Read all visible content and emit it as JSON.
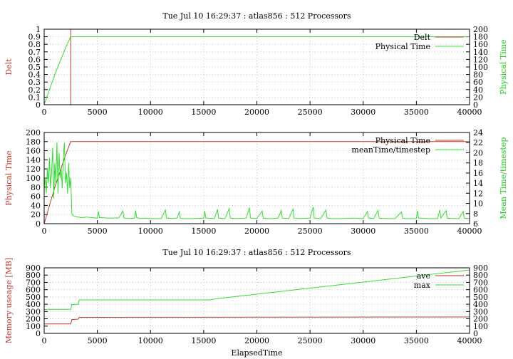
{
  "chart_data": [
    {
      "type": "line",
      "title": "Tue Jul 10 16:29:37 : atlas856 : 512 Processors",
      "xlabel": "",
      "ylabel_left": "Delt",
      "ylabel_right": "Physical Time",
      "xlim": [
        0,
        40000
      ],
      "ylim_left": [
        0,
        1
      ],
      "ylim_right": [
        0,
        200
      ],
      "yticks_left": [
        0,
        0.1,
        0.2,
        0.3,
        0.4,
        0.5,
        0.6,
        0.7,
        0.8,
        0.9,
        1
      ],
      "yticks_right": [
        0,
        20,
        40,
        60,
        80,
        100,
        120,
        140,
        160,
        180,
        200
      ],
      "xticks": [
        0,
        5000,
        10000,
        15000,
        20000,
        25000,
        30000,
        35000,
        40000
      ],
      "grid": true,
      "legend_position": "top-right",
      "series": [
        {
          "name": "Delt",
          "axis": "left",
          "color": "#c0392b",
          "x": [
            0,
            2500,
            2500,
            2500,
            40000
          ],
          "y": [
            0,
            0,
            1,
            0,
            0
          ]
        },
        {
          "name": "Physical Time",
          "axis": "right",
          "color": "#33dd33",
          "x": [
            0,
            500,
            1000,
            1500,
            2000,
            2500,
            40000
          ],
          "y": [
            0,
            40,
            80,
            115,
            150,
            180,
            180
          ]
        }
      ]
    },
    {
      "type": "line",
      "title": "",
      "xlabel": "",
      "ylabel_left": "Physical Time",
      "ylabel_right": "Mean Time/timestep",
      "xlim": [
        0,
        40000
      ],
      "ylim_left": [
        0,
        200
      ],
      "ylim_right": [
        6,
        24
      ],
      "yticks_left": [
        0,
        20,
        40,
        60,
        80,
        100,
        120,
        140,
        160,
        180,
        200
      ],
      "yticks_right": [
        6,
        8,
        10,
        12,
        14,
        16,
        18,
        20,
        22,
        24
      ],
      "xticks": [
        0,
        5000,
        10000,
        15000,
        20000,
        25000,
        30000,
        35000,
        40000
      ],
      "grid": true,
      "legend_position": "top-right",
      "series": [
        {
          "name": "Physical Time",
          "axis": "left",
          "color": "#c0392b",
          "x": [
            0,
            500,
            1000,
            1500,
            2000,
            2500,
            40000
          ],
          "y": [
            0,
            40,
            80,
            115,
            150,
            180,
            180
          ]
        },
        {
          "name": "meanTime/timestep",
          "axis": "right",
          "color": "#33dd33",
          "x": [
            0,
            100,
            200,
            300,
            400,
            500,
            600,
            700,
            800,
            900,
            1000,
            1100,
            1200,
            1300,
            1400,
            1500,
            1600,
            1700,
            1800,
            1900,
            2000,
            2100,
            2200,
            2300,
            2400,
            2500,
            2600,
            2700,
            3000,
            3500,
            4000,
            4500,
            5000,
            5100,
            5200,
            6000,
            7000,
            7400,
            7500,
            8000,
            8500,
            8600,
            8700,
            9000,
            9500,
            10000,
            11000,
            11400,
            11500,
            12000,
            12500,
            12700,
            12800,
            13000,
            14000,
            15000,
            15100,
            15200,
            16000,
            16300,
            16400,
            17000,
            17400,
            17500,
            18000,
            19000,
            19300,
            19400,
            20000,
            20500,
            20600,
            21000,
            21500,
            22000,
            22300,
            22400,
            23000,
            23400,
            23500,
            24000,
            25000,
            25300,
            25400,
            26000,
            26500,
            26600,
            27000,
            28000,
            29000,
            30000,
            30400,
            30500,
            31000,
            31400,
            31500,
            32000,
            33000,
            33600,
            33700,
            34000,
            35000,
            35100,
            35200,
            36000,
            37000,
            37200,
            37300,
            37800,
            37900,
            38500,
            39000,
            39400,
            39500,
            40000
          ],
          "y": [
            13,
            15,
            12,
            17,
            14,
            19,
            13,
            16,
            21,
            11,
            18,
            14,
            22,
            12,
            20,
            15,
            17,
            13,
            19,
            22,
            14,
            16,
            12,
            18,
            13,
            15,
            8,
            7.6,
            7.4,
            7.2,
            7.3,
            7.2,
            7.1,
            8.4,
            7.2,
            7.1,
            7.1,
            8.5,
            7.1,
            7.0,
            7.1,
            8.6,
            7.2,
            7.0,
            7.1,
            7.0,
            7.0,
            8.7,
            7.1,
            7.0,
            7.1,
            8.3,
            7.1,
            7.0,
            7.0,
            7.1,
            8.5,
            7.1,
            7.0,
            8.8,
            7.1,
            7.0,
            9.0,
            7.1,
            7.0,
            7.1,
            9.2,
            7.1,
            7.0,
            8.5,
            7.1,
            7.0,
            7.0,
            7.1,
            8.6,
            7.1,
            7.0,
            8.9,
            7.1,
            7.0,
            7.1,
            9.3,
            7.1,
            7.0,
            8.7,
            7.1,
            7.0,
            7.0,
            7.1,
            7.0,
            8.4,
            7.1,
            7.0,
            8.6,
            7.1,
            7.0,
            7.0,
            8.3,
            7.1,
            7.0,
            7.0,
            8.5,
            7.1,
            7.0,
            7.0,
            8.7,
            7.1,
            8.6,
            7.1,
            7.0,
            7.0,
            8.4,
            7.1,
            7.0
          ]
        }
      ]
    },
    {
      "type": "line",
      "title": "Tue Jul 10 16:29:37 : atlas856 : 512 Processors",
      "xlabel": "ElapsedTime",
      "ylabel_left": "Memory useage [MB]",
      "ylabel_right": "",
      "xlim": [
        0,
        40000
      ],
      "ylim_left": [
        0,
        900
      ],
      "ylim_right": [
        0,
        900
      ],
      "yticks_left": [
        0,
        100,
        200,
        300,
        400,
        500,
        600,
        700,
        800,
        900
      ],
      "yticks_right": [
        0,
        100,
        200,
        300,
        400,
        500,
        600,
        700,
        800,
        900
      ],
      "xticks": [
        0,
        5000,
        10000,
        15000,
        20000,
        25000,
        30000,
        35000,
        40000
      ],
      "grid": true,
      "legend_position": "top-right",
      "series": [
        {
          "name": "ave",
          "axis": "left",
          "color": "#c0392b",
          "x": [
            0,
            2500,
            2600,
            3200,
            3300,
            40000
          ],
          "y": [
            130,
            130,
            190,
            195,
            220,
            225
          ]
        },
        {
          "name": "max",
          "axis": "left",
          "color": "#33dd33",
          "x": [
            0,
            2500,
            2600,
            3200,
            3300,
            15500,
            16500,
            40000
          ],
          "y": [
            330,
            330,
            395,
            400,
            460,
            460,
            480,
            870
          ]
        }
      ]
    }
  ]
}
